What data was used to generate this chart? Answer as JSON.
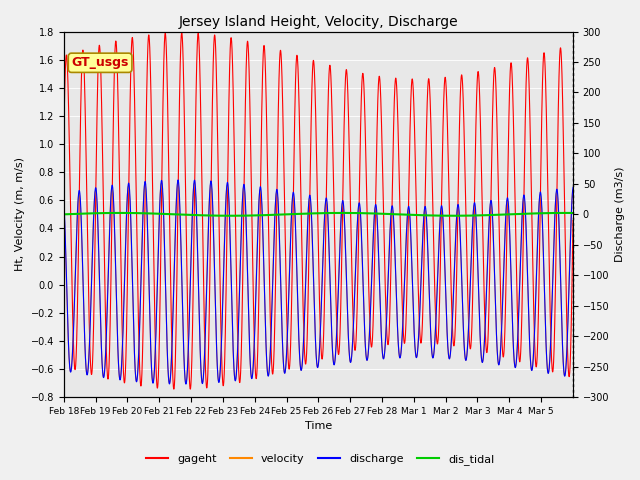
{
  "title": "Jersey Island Height, Velocity, Discharge",
  "xlabel": "Time",
  "ylabel_left": "Ht, Velocity (m, m/s)",
  "ylabel_right": "Discharge (m3/s)",
  "ylim_left": [
    -0.8,
    1.8
  ],
  "ylim_right": [
    -300,
    300
  ],
  "num_days": 16.0,
  "tidal_period_hours": 12.42,
  "background_color": "#f0f0f0",
  "plot_bg_color": "#e8e8e8",
  "legend_labels": [
    "gageht",
    "velocity",
    "discharge",
    "dis_tidal"
  ],
  "legend_colors": [
    "#ff0000",
    "#ff8800",
    "#0000ff",
    "#00cc00"
  ],
  "colors": {
    "gageht": "#ff0000",
    "velocity": "#ff8800",
    "discharge": "#0000ff",
    "dis_tidal": "#00cc00"
  },
  "annotation_text": "GT_usgs",
  "annotation_bg": "#ffff99",
  "annotation_edge": "#aa8800",
  "tick_dates": [
    "Feb 18",
    "Feb 19",
    "Feb 20",
    "Feb 21",
    "Feb 22",
    "Feb 23",
    "Feb 24",
    "Feb 25",
    "Feb 26",
    "Feb 27",
    "Feb 28",
    "Mar 1",
    "Mar 2",
    "Mar 3",
    "Mar 4",
    "Mar 5"
  ],
  "left_yticks": [
    -0.8,
    -0.6,
    -0.4,
    -0.2,
    0.0,
    0.2,
    0.4,
    0.6,
    0.8,
    1.0,
    1.2,
    1.4,
    1.6,
    1.8
  ],
  "right_yticks": [
    -300,
    -250,
    -200,
    -150,
    -100,
    -50,
    0,
    50,
    100,
    150,
    200,
    250,
    300
  ]
}
